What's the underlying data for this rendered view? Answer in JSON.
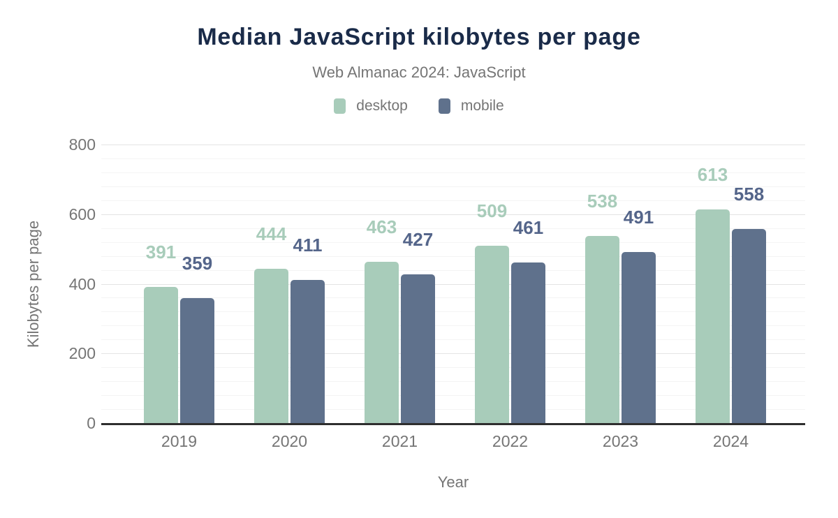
{
  "title": "Median JavaScript kilobytes per page",
  "subtitle": "Web Almanac 2024: JavaScript",
  "legend": [
    {
      "label": "desktop",
      "color": "#a8ccba"
    },
    {
      "label": "mobile",
      "color": "#5f718c"
    }
  ],
  "colors": {
    "title_navy": "#1a2b49",
    "muted_text": "#757575",
    "axis_line": "#2e2e2e",
    "major_gridline": "#e4e4e4",
    "minor_gridline": "#f4f4f4"
  },
  "chart_data": {
    "type": "bar",
    "title": "Median JavaScript kilobytes per page",
    "subtitle": "Web Almanac 2024: JavaScript",
    "categories": [
      "2019",
      "2020",
      "2021",
      "2022",
      "2023",
      "2024"
    ],
    "series": [
      {
        "name": "desktop",
        "color": "#a8ccba",
        "label_color": "#a8ccba",
        "values": [
          391,
          444,
          463,
          509,
          538,
          613
        ]
      },
      {
        "name": "mobile",
        "color": "#5f718c",
        "label_color": "#54658a",
        "values": [
          359,
          411,
          427,
          461,
          491,
          558
        ]
      }
    ],
    "xlabel": "Year",
    "ylabel": "Kilobytes per page",
    "ylim": [
      0,
      800
    ],
    "yticks": [
      0,
      200,
      400,
      600,
      800
    ],
    "minor_grid_step": 40,
    "grid": true,
    "data_labels": true,
    "legend_position": "top"
  }
}
